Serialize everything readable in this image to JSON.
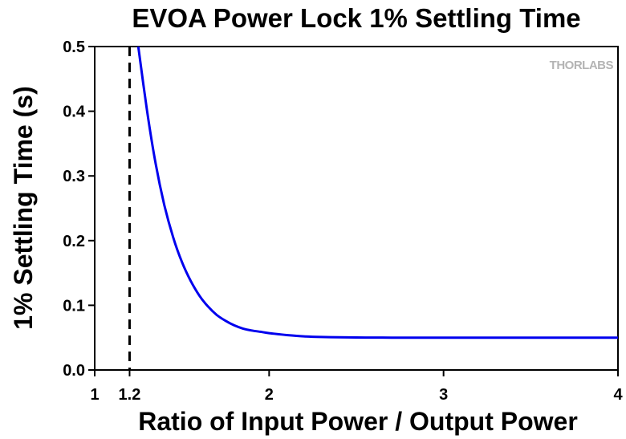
{
  "chart_data": {
    "type": "line",
    "title": "EVOA Power Lock 1% Settling Time",
    "xlabel": "Ratio of Input Power / Output Power",
    "ylabel": "1% Settling Time (s)",
    "xlim": [
      1,
      4
    ],
    "ylim": [
      0,
      0.5
    ],
    "x_ticks": [
      1,
      1.2,
      2,
      3,
      4
    ],
    "x_tick_labels": [
      "1",
      "1.2",
      "2",
      "3",
      "4"
    ],
    "y_ticks": [
      0,
      0.1,
      0.2,
      0.3,
      0.4,
      0.5
    ],
    "y_tick_labels": [
      "0.0",
      "0.1",
      "0.2",
      "0.3",
      "0.4",
      "0.5"
    ],
    "grid": false,
    "colors": {
      "series": "#0000ee",
      "reference_line": "#000000",
      "watermark": "#b4b4b4"
    },
    "reference_lines": [
      {
        "orientation": "vertical",
        "x": 1.2,
        "style": "dashed"
      }
    ],
    "series": [
      {
        "x": [
          1.25,
          1.3,
          1.35,
          1.4,
          1.45,
          1.5,
          1.55,
          1.6,
          1.65,
          1.7,
          1.75,
          1.8,
          1.85,
          1.9,
          1.95,
          2.0,
          2.1,
          2.2,
          2.3,
          2.4,
          2.5,
          2.6,
          2.7,
          2.8,
          3.0,
          3.2,
          3.4,
          3.6,
          3.8,
          4.0
        ],
        "y": [
          0.5,
          0.401,
          0.318,
          0.254,
          0.205,
          0.167,
          0.138,
          0.115,
          0.098,
          0.085,
          0.076,
          0.069,
          0.064,
          0.061,
          0.059,
          0.057,
          0.054,
          0.052,
          0.051,
          0.0505,
          0.0502,
          0.0501,
          0.05,
          0.05,
          0.05,
          0.05,
          0.05,
          0.05,
          0.05,
          0.05
        ]
      }
    ]
  },
  "watermark": {
    "text": "THORLABS"
  }
}
